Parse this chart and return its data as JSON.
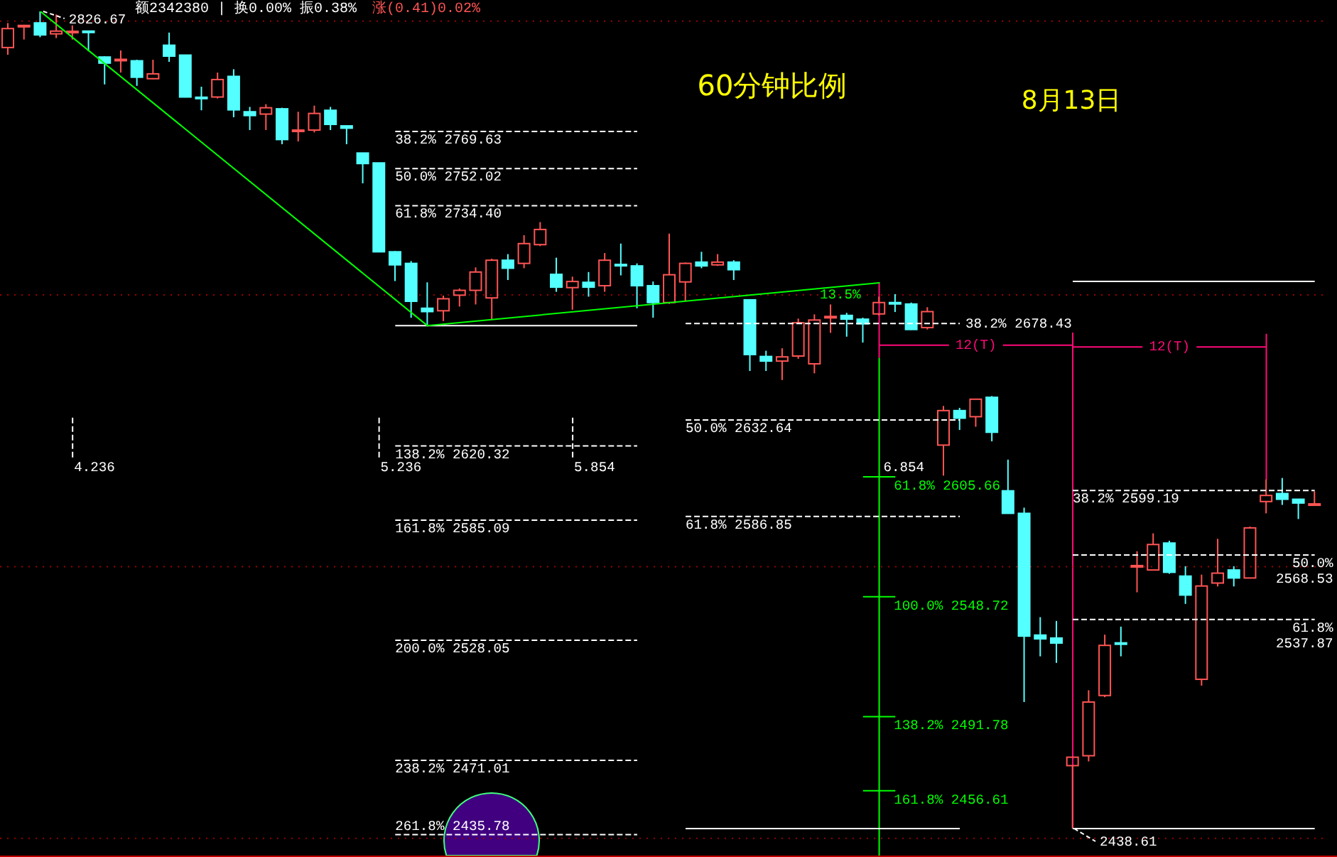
{
  "chart_data": {
    "type": "candlestick",
    "title": "60分钟比例",
    "subtitle": "8月13日",
    "annotations": [
      "额2342380 | 换0.00% 振0.38%",
      "涨(0.41)0.02%",
      "2826.67",
      {
        "text": "2438.61",
        "y": 2438.61
      },
      "13.5%",
      "4.236",
      "5.236",
      "5.854",
      "6.854",
      "12(T)",
      "12(T)"
    ],
    "categories": [
      null,
      null,
      null,
      null,
      null,
      null,
      null,
      null,
      null,
      null,
      null,
      null,
      null,
      null,
      null,
      null,
      null,
      null,
      null,
      null,
      null,
      null,
      null,
      null,
      null,
      null,
      null,
      null,
      null,
      null,
      null,
      null,
      null,
      null,
      null,
      null,
      null,
      null,
      null,
      null,
      null,
      null,
      null,
      null,
      null,
      null,
      null,
      null,
      null,
      null,
      null,
      null,
      null,
      null,
      null,
      null,
      null,
      null,
      null,
      null,
      null,
      null,
      null,
      null,
      null,
      null,
      null,
      null,
      null,
      null,
      null,
      null,
      null,
      null,
      null,
      null,
      null,
      null,
      null,
      null,
      null,
      null
    ],
    "ohlc": [
      [
        2809.5,
        2821.1,
        2806.1,
        2818.5
      ],
      [
        2819.4,
        2820.3,
        2813.3,
        2820.0
      ],
      [
        2821.2,
        2826.67,
        2814.4,
        2815.5
      ],
      [
        2816.0,
        2825.2,
        2814.0,
        2817.3
      ],
      [
        2817.0,
        2820.0,
        2813.3,
        2817.2
      ],
      [
        2817.3,
        2817.5,
        2807.7,
        2816.8
      ],
      [
        2805.0,
        2805.3,
        2792.0,
        2802.1
      ],
      [
        2803.5,
        2808.1,
        2797.6,
        2803.9
      ],
      [
        2803.2,
        2803.7,
        2791.3,
        2795.4
      ],
      [
        2794.7,
        2803.7,
        2794.5,
        2797.0
      ],
      [
        2810.6,
        2816.6,
        2802.7,
        2805.4
      ],
      [
        2805.9,
        2806.1,
        2785.8,
        2786.0
      ],
      [
        2785.9,
        2790.9,
        2779.7,
        2785.4
      ],
      [
        2786.0,
        2797.6,
        2785.3,
        2794.3
      ],
      [
        2795.8,
        2799.2,
        2776.4,
        2779.9
      ],
      [
        2779.0,
        2781.3,
        2770.3,
        2777.2
      ],
      [
        2777.9,
        2782.6,
        2770.3,
        2780.9
      ],
      [
        2780.4,
        2780.9,
        2763.6,
        2765.8
      ],
      [
        2770.0,
        2779.0,
        2764.9,
        2770.3
      ],
      [
        2770.3,
        2781.9,
        2769.2,
        2778.2
      ],
      [
        2779.7,
        2781.3,
        2770.3,
        2773.0
      ],
      [
        2772.3,
        2772.5,
        2763.6,
        2771.2
      ],
      [
        2759.4,
        2759.5,
        2745.0,
        2754.4
      ],
      [
        2754.7,
        2754.8,
        2712.3,
        2712.5
      ],
      [
        2712.5,
        2712.8,
        2698.6,
        2706.3
      ],
      [
        2707.0,
        2708.1,
        2681.2,
        2689.0
      ],
      [
        2685.7,
        2698.0,
        2677.4,
        2684.1
      ],
      [
        2684.5,
        2691.7,
        2679.6,
        2690.2
      ],
      [
        2691.9,
        2695.1,
        2686.5,
        2694.2
      ],
      [
        2694.2,
        2705.1,
        2687.5,
        2702.9
      ],
      [
        2690.6,
        2709.2,
        2680.5,
        2708.5
      ],
      [
        2708.5,
        2711.4,
        2699.1,
        2704.7
      ],
      [
        2707.0,
        2720.4,
        2704.7,
        2716.4
      ],
      [
        2715.9,
        2726.6,
        2715.2,
        2723.1
      ],
      [
        2701.8,
        2709.7,
        2693.5,
        2695.7
      ],
      [
        2695.5,
        2700.7,
        2685.0,
        2698.4
      ],
      [
        2698.0,
        2702.9,
        2691.2,
        2695.7
      ],
      [
        2696.4,
        2711.9,
        2693.5,
        2708.5
      ],
      [
        2706.5,
        2716.4,
        2701.3,
        2706.1
      ],
      [
        2705.8,
        2707.0,
        2685.7,
        2696.4
      ],
      [
        2696.4,
        2698.4,
        2681.2,
        2688.4
      ],
      [
        2688.4,
        2721.1,
        2687.7,
        2701.6
      ],
      [
        2698.2,
        2707.4,
        2689.0,
        2707.0
      ],
      [
        2707.6,
        2712.5,
        2704.7,
        2705.8
      ],
      [
        2706.3,
        2711.4,
        2705.8,
        2707.6
      ],
      [
        2707.6,
        2708.5,
        2699.1,
        2704.0
      ],
      [
        2689.7,
        2689.9,
        2655.9,
        2663.7
      ],
      [
        2662.8,
        2665.5,
        2655.9,
        2660.6
      ],
      [
        2660.6,
        2666.7,
        2651.6,
        2662.6
      ],
      [
        2663.0,
        2680.8,
        2661.7,
        2678.8
      ],
      [
        2659.3,
        2682.8,
        2654.8,
        2680.1
      ],
      [
        2681.6,
        2687.5,
        2674.0,
        2681.8
      ],
      [
        2682.3,
        2683.5,
        2672.2,
        2680.5
      ],
      [
        2680.5,
        2681.2,
        2669.4,
        2678.3
      ],
      [
        2683.0,
        2691.2,
        2682.3,
        2688.4
      ],
      [
        2688.4,
        2692.4,
        2683.9,
        2688.0
      ],
      [
        2687.7,
        2688.4,
        2675.4,
        2675.6
      ],
      [
        2676.5,
        2686.2,
        2675.6,
        2684.1
      ],
      [
        2620.7,
        2639.3,
        2606.2,
        2637.1
      ],
      [
        2637.1,
        2638.4,
        2627.9,
        2633.5
      ],
      [
        2634.2,
        2642.7,
        2629.4,
        2642.5
      ],
      [
        2643.4,
        2644.0,
        2622.5,
        2626.8
      ],
      [
        2599.0,
        2613.8,
        2588.1,
        2588.3
      ],
      [
        2588.3,
        2591.0,
        2498.7,
        2530.0
      ],
      [
        2530.5,
        2539.0,
        2520.4,
        2528.7
      ],
      [
        2529.1,
        2537.2,
        2517.3,
        2526.7
      ],
      [
        2468.5,
        2472.7,
        2438.61,
        2472.5
      ],
      [
        2473.2,
        2504.3,
        2470.5,
        2498.7
      ],
      [
        2501.8,
        2530.7,
        2501.0,
        2525.6
      ],
      [
        2526.8,
        2534.5,
        2520.4,
        2526.4
      ],
      [
        2563.2,
        2570.3,
        2550.8,
        2563.5
      ],
      [
        2561.4,
        2578.8,
        2561.2,
        2573.5
      ],
      [
        2574.2,
        2575.3,
        2559.6,
        2560.3
      ],
      [
        2558.5,
        2563.2,
        2545.3,
        2549.5
      ],
      [
        2509.5,
        2559.2,
        2506.5,
        2553.8
      ],
      [
        2555.2,
        2576.2,
        2553.6,
        2559.9
      ],
      [
        2561.4,
        2563.2,
        2553.6,
        2557.6
      ],
      [
        2557.6,
        2582.0,
        2557.4,
        2581.4
      ],
      [
        2593.9,
        2604.4,
        2588.3,
        2596.8
      ],
      [
        2597.7,
        2605.1,
        2592.3,
        2595.0
      ],
      [
        2595.0,
        2595.2,
        2585.6,
        2593.2
      ],
      [
        2592.6,
        2598.8,
        2592.4,
        2592.8
      ]
    ],
    "colors": [
      "#ff5454",
      "#ff5454",
      "#54ffff",
      "#ff5454",
      "#ff5454",
      "#54ffff",
      "#54ffff",
      "#ff5454",
      "#54ffff",
      "#ff5454",
      "#54ffff",
      "#54ffff",
      "#54ffff",
      "#ff5454",
      "#54ffff",
      "#54ffff",
      "#ff5454",
      "#54ffff",
      "#ff5454",
      "#ff5454",
      "#54ffff",
      "#54ffff",
      "#54ffff",
      "#54ffff",
      "#54ffff",
      "#54ffff",
      "#54ffff",
      "#ff5454",
      "#ff5454",
      "#ff5454",
      "#ff5454",
      "#54ffff",
      "#ff5454",
      "#ff5454",
      "#54ffff",
      "#ff5454",
      "#54ffff",
      "#ff5454",
      "#54ffff",
      "#54ffff",
      "#54ffff",
      "#ff5454",
      "#ff5454",
      "#54ffff",
      "#ff5454",
      "#54ffff",
      "#54ffff",
      "#54ffff",
      "#ff5454",
      "#ff5454",
      "#ff5454",
      "#ff5454",
      "#54ffff",
      "#54ffff",
      "#ff5454",
      "#54ffff",
      "#54ffff",
      "#ff5454",
      "#ff5454",
      "#54ffff",
      "#ff5454",
      "#54ffff",
      "#54ffff",
      "#54ffff",
      "#54ffff",
      "#54ffff",
      "#ff5454",
      "#ff5454",
      "#ff5454",
      "#54ffff",
      "#ff5454",
      "#ff5454",
      "#54ffff",
      "#54ffff",
      "#ff5454",
      "#ff5454",
      "#54ffff",
      "#ff5454",
      "#ff5454",
      "#54ffff",
      "#54ffff",
      "#ff5454"
    ],
    "series": [
      {
        "type": "line",
        "color": "#00ff00",
        "values": [
          null,
          null,
          2826.7,
          null,
          null,
          null,
          null,
          null,
          null,
          null,
          null,
          null,
          null,
          null,
          null,
          null,
          null,
          null,
          null,
          null,
          null,
          null,
          null,
          null,
          null,
          null,
          2677.4,
          null,
          null,
          null,
          null,
          null,
          null,
          null,
          null,
          null,
          null,
          null,
          null,
          null,
          null,
          null,
          null,
          null,
          null,
          null,
          null,
          null,
          null,
          null,
          null,
          null,
          null,
          null,
          null,
          null,
          null,
          null,
          null,
          null,
          null,
          null,
          null,
          null,
          null,
          null,
          null,
          null,
          null,
          null,
          null,
          null,
          null,
          null,
          null,
          null,
          null,
          null,
          null,
          null,
          null,
          null
        ]
      },
      {
        "type": "line",
        "color": "#00ff00",
        "values": [
          null,
          null,
          null,
          null,
          null,
          null,
          null,
          null,
          null,
          null,
          null,
          null,
          null,
          null,
          null,
          null,
          null,
          null,
          null,
          null,
          null,
          null,
          null,
          null,
          null,
          null,
          2677.4,
          null,
          null,
          null,
          null,
          null,
          null,
          null,
          null,
          null,
          null,
          null,
          null,
          null,
          null,
          null,
          null,
          null,
          null,
          null,
          null,
          null,
          null,
          null,
          null,
          null,
          null,
          null,
          2697.8,
          null,
          null,
          null,
          null,
          null,
          null,
          null,
          null,
          null,
          null,
          null,
          null,
          null,
          null,
          null,
          null,
          null,
          null,
          null,
          null,
          null,
          null,
          null,
          null,
          null,
          null,
          null
        ]
      }
    ],
    "ref_lines": [
      {
        "axis": "y",
        "value": 2769.63,
        "label": "38.2% 2769.63",
        "color": "#ffffff",
        "line_style": "dashed"
      },
      {
        "axis": "y",
        "value": 2752.02,
        "label": "50.0% 2752.02",
        "color": "#ffffff",
        "line_style": "dashed"
      },
      {
        "axis": "y",
        "value": 2734.4,
        "label": "61.8% 2734.40",
        "color": "#ffffff",
        "line_style": "dashed"
      },
      {
        "axis": "y",
        "value": 2620.32,
        "label": "138.2% 2620.32",
        "color": "#ffffff",
        "line_style": "dashed"
      },
      {
        "axis": "y",
        "value": 2585.09,
        "label": "161.8% 2585.09",
        "color": "#ffffff",
        "line_style": "dashed"
      },
      {
        "axis": "y",
        "value": 2528.05,
        "label": "200.0% 2528.05",
        "color": "#ffffff",
        "line_style": "dashed"
      },
      {
        "axis": "y",
        "value": 2471.01,
        "label": "238.2% 2471.01",
        "color": "#ffffff",
        "line_style": "dashed"
      },
      {
        "axis": "y",
        "value": 2435.78,
        "label": "261.8% 2435.78",
        "color": "#ffffff",
        "line_style": "dashed"
      },
      {
        "axis": "y",
        "value": 2677.4,
        "color": "#ffffff",
        "line_style": "solid"
      },
      {
        "axis": "y",
        "value": 2678.43,
        "label": "38.2% 2678.43",
        "color": "#ffffff",
        "line_style": "dashed"
      },
      {
        "axis": "y",
        "value": 2632.64,
        "label": "50.0% 2632.64",
        "color": "#ffffff",
        "line_style": "dashed"
      },
      {
        "axis": "y",
        "value": 2586.85,
        "label": "61.8% 2586.85",
        "color": "#ffffff",
        "line_style": "dashed"
      },
      {
        "axis": "y",
        "value": 2438.61,
        "color": "#ffffff",
        "line_style": "solid"
      },
      {
        "axis": "y",
        "value": 2605.66,
        "label": "61.8% 2605.66",
        "color": "#00ff00",
        "line_style": "solid"
      },
      {
        "axis": "y",
        "value": 2548.72,
        "label": "100.0% 2548.72",
        "color": "#00ff00",
        "line_style": "solid"
      },
      {
        "axis": "y",
        "value": 2491.78,
        "label": "138.2% 2491.78",
        "color": "#00ff00",
        "line_style": "solid"
      },
      {
        "axis": "y",
        "value": 2456.61,
        "label": "161.8% 2456.61",
        "color": "#00ff00",
        "line_style": "solid"
      },
      {
        "axis": "y",
        "value": 2599.19,
        "label": "38.2% 2599.19",
        "color": "#ffffff",
        "line_style": "dashed"
      },
      {
        "axis": "y",
        "value": 2568.53,
        "label": "50.0% 2568.53",
        "color": "#ffffff",
        "line_style": "dashed"
      },
      {
        "axis": "y",
        "value": 2537.87,
        "label": "61.8% 2537.87",
        "color": "#ffffff",
        "line_style": "dashed"
      },
      {
        "axis": "y",
        "value": 2698.4,
        "color": "#ffffff",
        "line_style": "solid"
      }
    ],
    "grid": "y",
    "yticks": [
      {
        "value": 2822,
        "label": null
      },
      {
        "value": 2692,
        "label": null
      },
      {
        "value": 2563,
        "label": null
      },
      {
        "value": 2434,
        "label": null
      }
    ],
    "tick_labels": false
  }
}
